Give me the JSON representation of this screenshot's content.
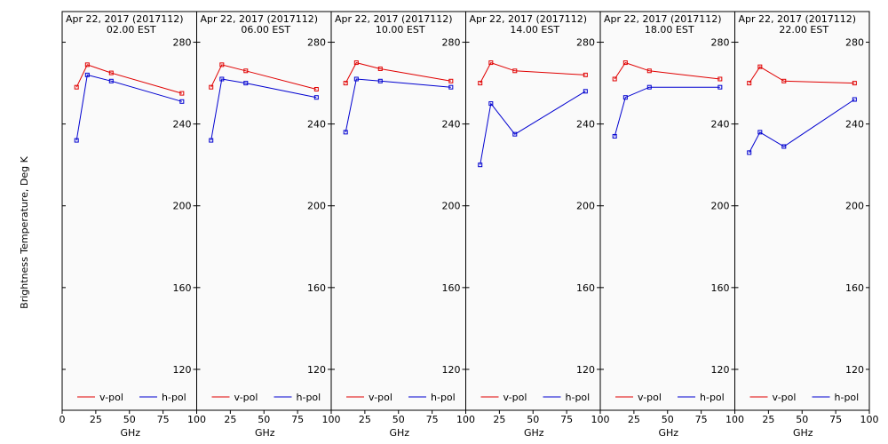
{
  "figure": {
    "ylabel": "Brightness Temperature, Deg K",
    "xlabel": "GHz"
  },
  "chart_data": [
    {
      "type": "line",
      "title": "Apr 22, 2017 (2017112)",
      "subtitle": "02.00 EST",
      "xlabel": "GHz",
      "ylabel": "Brightness Temperature, Deg K",
      "xlim": [
        0,
        100
      ],
      "ylim": [
        100,
        295
      ],
      "xticks": [
        0,
        25,
        50,
        75,
        100
      ],
      "yticks": [
        120,
        160,
        200,
        240,
        280
      ],
      "legend": "bottom",
      "series": [
        {
          "name": "v-pol",
          "color": "#e00000",
          "x": [
            10.7,
            18.7,
            36.5,
            89.0
          ],
          "y": [
            258,
            269,
            265,
            255
          ]
        },
        {
          "name": "h-pol",
          "color": "#0000d0",
          "x": [
            10.7,
            18.7,
            36.5,
            89.0
          ],
          "y": [
            232,
            264,
            261,
            251
          ]
        }
      ]
    },
    {
      "type": "line",
      "title": "Apr 22, 2017 (2017112)",
      "subtitle": "06.00 EST",
      "xlabel": "GHz",
      "ylabel": "Brightness Temperature, Deg K",
      "xlim": [
        0,
        100
      ],
      "ylim": [
        100,
        295
      ],
      "xticks": [
        0,
        25,
        50,
        75,
        100
      ],
      "yticks": [
        120,
        160,
        200,
        240,
        280
      ],
      "legend": "bottom",
      "series": [
        {
          "name": "v-pol",
          "color": "#e00000",
          "x": [
            10.7,
            18.7,
            36.5,
            89.0
          ],
          "y": [
            258,
            269,
            266,
            257
          ]
        },
        {
          "name": "h-pol",
          "color": "#0000d0",
          "x": [
            10.7,
            18.7,
            36.5,
            89.0
          ],
          "y": [
            232,
            262,
            260,
            253
          ]
        }
      ]
    },
    {
      "type": "line",
      "title": "Apr 22, 2017 (2017112)",
      "subtitle": "10.00 EST",
      "xlabel": "GHz",
      "ylabel": "Brightness Temperature, Deg K",
      "xlim": [
        0,
        100
      ],
      "ylim": [
        100,
        295
      ],
      "xticks": [
        0,
        25,
        50,
        75,
        100
      ],
      "yticks": [
        120,
        160,
        200,
        240,
        280
      ],
      "legend": "bottom",
      "series": [
        {
          "name": "v-pol",
          "color": "#e00000",
          "x": [
            10.7,
            18.7,
            36.5,
            89.0
          ],
          "y": [
            260,
            270,
            267,
            261
          ]
        },
        {
          "name": "h-pol",
          "color": "#0000d0",
          "x": [
            10.7,
            18.7,
            36.5,
            89.0
          ],
          "y": [
            236,
            262,
            261,
            258
          ]
        }
      ]
    },
    {
      "type": "line",
      "title": "Apr 22, 2017 (2017112)",
      "subtitle": "14.00 EST",
      "xlabel": "GHz",
      "ylabel": "Brightness Temperature, Deg K",
      "xlim": [
        0,
        100
      ],
      "ylim": [
        100,
        295
      ],
      "xticks": [
        0,
        25,
        50,
        75,
        100
      ],
      "yticks": [
        120,
        160,
        200,
        240,
        280
      ],
      "legend": "bottom",
      "series": [
        {
          "name": "v-pol",
          "color": "#e00000",
          "x": [
            10.7,
            18.7,
            36.5,
            89.0
          ],
          "y": [
            260,
            270,
            266,
            264
          ]
        },
        {
          "name": "h-pol",
          "color": "#0000d0",
          "x": [
            10.7,
            18.7,
            36.5,
            89.0
          ],
          "y": [
            220,
            250,
            235,
            256
          ]
        }
      ]
    },
    {
      "type": "line",
      "title": "Apr 22, 2017 (2017112)",
      "subtitle": "18.00 EST",
      "xlabel": "GHz",
      "ylabel": "Brightness Temperature, Deg K",
      "xlim": [
        0,
        100
      ],
      "ylim": [
        100,
        295
      ],
      "xticks": [
        0,
        25,
        50,
        75,
        100
      ],
      "yticks": [
        120,
        160,
        200,
        240,
        280
      ],
      "legend": "bottom",
      "series": [
        {
          "name": "v-pol",
          "color": "#e00000",
          "x": [
            10.7,
            18.7,
            36.5,
            89.0
          ],
          "y": [
            262,
            270,
            266,
            262
          ]
        },
        {
          "name": "h-pol",
          "color": "#0000d0",
          "x": [
            10.7,
            18.7,
            36.5,
            89.0
          ],
          "y": [
            234,
            253,
            258,
            258
          ]
        }
      ]
    },
    {
      "type": "line",
      "title": "Apr 22, 2017 (2017112)",
      "subtitle": "22.00 EST",
      "xlabel": "GHz",
      "ylabel": "Brightness Temperature, Deg K",
      "xlim": [
        0,
        100
      ],
      "ylim": [
        100,
        295
      ],
      "xticks": [
        0,
        25,
        50,
        75,
        100
      ],
      "yticks": [
        120,
        160,
        200,
        240,
        280
      ],
      "legend": "bottom",
      "series": [
        {
          "name": "v-pol",
          "color": "#e00000",
          "x": [
            10.7,
            18.7,
            36.5,
            89.0
          ],
          "y": [
            260,
            268,
            261,
            260
          ]
        },
        {
          "name": "h-pol",
          "color": "#0000d0",
          "x": [
            10.7,
            18.7,
            36.5,
            89.0
          ],
          "y": [
            226,
            236,
            229,
            252
          ]
        }
      ]
    }
  ]
}
